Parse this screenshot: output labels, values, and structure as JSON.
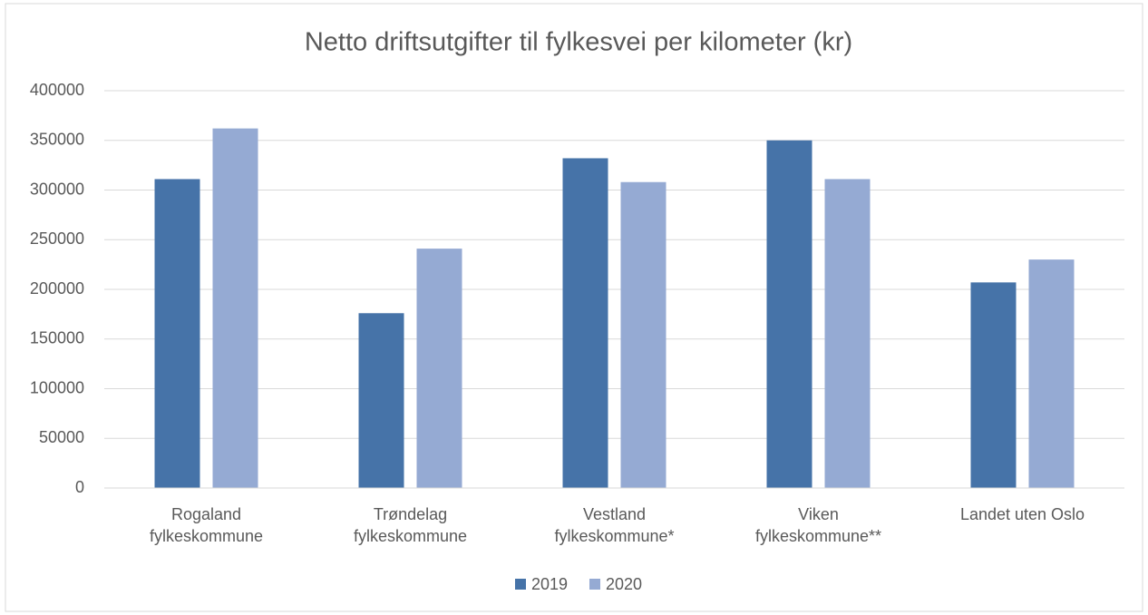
{
  "chart_data": {
    "type": "bar",
    "title": "Netto driftsutgifter til fylkesvei per kilometer (kr)",
    "categories": [
      "Rogaland\nfylkeskommune",
      "Trøndelag\nfylkeskommune",
      "Vestland\nfylkeskommune*",
      "Viken\nfylkeskommune**",
      "Landet uten Oslo"
    ],
    "series": [
      {
        "name": "2019",
        "color": "#4673a8",
        "values": [
          311000,
          176000,
          332000,
          350000,
          207000
        ]
      },
      {
        "name": "2020",
        "color": "#95aad3",
        "values": [
          362000,
          241000,
          308000,
          311000,
          230000
        ]
      }
    ],
    "ylim": [
      0,
      400000
    ],
    "yticks": [
      0,
      50000,
      100000,
      150000,
      200000,
      250000,
      300000,
      350000,
      400000
    ],
    "grid": true,
    "legend": "bottom"
  }
}
